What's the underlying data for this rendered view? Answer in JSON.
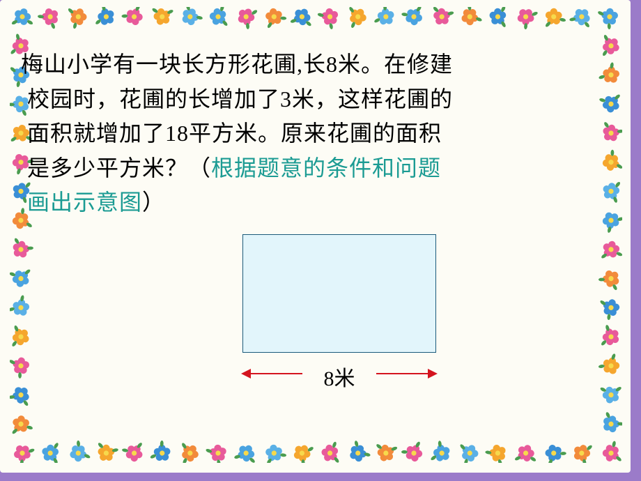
{
  "problem": {
    "line1": "梅山小学有一块长方形花圃,长8米。在修建",
    "line2": "校园时，花圃的长增加了3米，这样花圃的",
    "line3": "面积就增加了18平方米。原来花圃的面积",
    "line4_a": "是多少平方米？（",
    "line4_b": "根据题意的条件和问题",
    "line5_b": "画出示意图",
    "line5_c": "）"
  },
  "diagram": {
    "rect_fill": "#e2f5fb",
    "rect_border": "#1a5a7a",
    "dim_label": "8米",
    "arrow_color": "#d4141e"
  },
  "flowers": {
    "count_per_side_h": 22,
    "count_per_side_v": 16,
    "petal_colors": [
      "#4aa3e0",
      "#e85a9a",
      "#f28b3b",
      "#3a8fd6",
      "#e85a9a",
      "#f5a62e",
      "#5ab0e6"
    ],
    "center_color": "#f7d94c",
    "leaf_color": "#4a9c4f"
  },
  "frame": {
    "bg": "#fdfcf5",
    "outer_bg": "#9b7bc9"
  }
}
